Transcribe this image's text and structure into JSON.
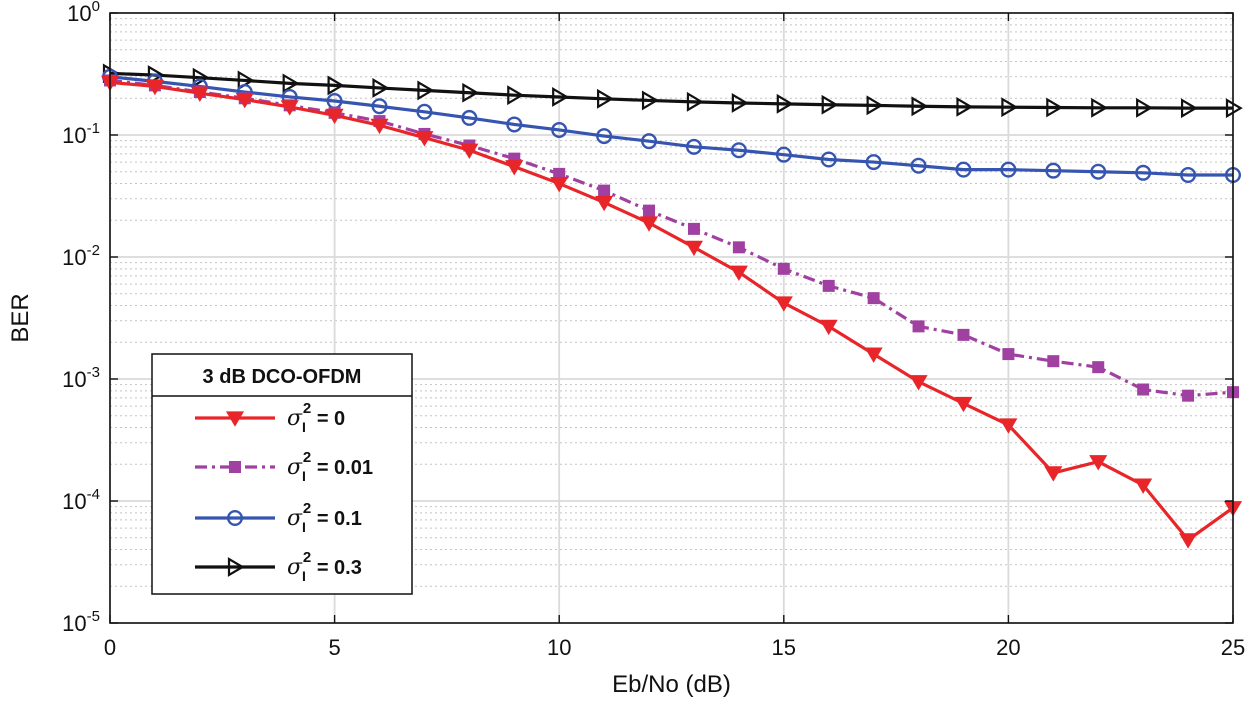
{
  "chart_data": {
    "type": "line",
    "title": "",
    "xlabel": "Eb/No (dB)",
    "ylabel": "BER",
    "x_scale": "linear",
    "y_scale": "log",
    "xlim": [
      0,
      25
    ],
    "ylim": [
      1e-05,
      1
    ],
    "x_ticks": [
      0,
      5,
      10,
      15,
      20,
      25
    ],
    "y_ticks": [
      {
        "exp": 0,
        "base": "10",
        "sup": "0"
      },
      {
        "exp": -1,
        "base": "10",
        "sup": "-1"
      },
      {
        "exp": -2,
        "base": "10",
        "sup": "-2"
      },
      {
        "exp": -3,
        "base": "10",
        "sup": "-3"
      },
      {
        "exp": -4,
        "base": "10",
        "sup": "-4"
      },
      {
        "exp": -5,
        "base": "10",
        "sup": "-5"
      }
    ],
    "grid": true,
    "minor_grid": true,
    "legend": {
      "title": "3 dB DCO-OFDM",
      "placement": "bottom-left"
    },
    "x": [
      0,
      1,
      2,
      3,
      4,
      5,
      6,
      7,
      8,
      9,
      10,
      11,
      12,
      13,
      14,
      15,
      16,
      17,
      18,
      19,
      20,
      21,
      22,
      23,
      24,
      25
    ],
    "series": [
      {
        "label": {
          "sigma": "σ",
          "sub": "I",
          "sup": "2",
          "rest": " = 0"
        },
        "color": "#e8262a",
        "marker": "triangle-down",
        "dash": "solid",
        "values": [
          0.27,
          0.25,
          0.22,
          0.195,
          0.17,
          0.145,
          0.12,
          0.095,
          0.075,
          0.055,
          0.04,
          0.028,
          0.019,
          0.012,
          0.0075,
          0.0042,
          0.0027,
          0.0016,
          0.00095,
          0.00063,
          0.00042,
          0.00017,
          0.00021,
          0.000135,
          4.8e-05,
          8.8e-05
        ]
      },
      {
        "label": {
          "sigma": "σ",
          "sub": "I",
          "sup": "2",
          "rest": " = 0.01"
        },
        "color": "#a040a0",
        "marker": "square",
        "dash": "dashdot",
        "values": [
          0.28,
          0.255,
          0.225,
          0.2,
          0.175,
          0.152,
          0.13,
          0.102,
          0.082,
          0.064,
          0.048,
          0.035,
          0.024,
          0.017,
          0.012,
          0.008,
          0.0058,
          0.0046,
          0.0027,
          0.0023,
          0.0016,
          0.0014,
          0.00125,
          0.00082,
          0.00073,
          0.00078
        ]
      },
      {
        "label": {
          "sigma": "σ",
          "sub": "I",
          "sup": "2",
          "rest": " = 0.1"
        },
        "color": "#3555b0",
        "marker": "circle",
        "dash": "solid",
        "values": [
          0.3,
          0.275,
          0.25,
          0.225,
          0.205,
          0.19,
          0.172,
          0.155,
          0.138,
          0.122,
          0.11,
          0.098,
          0.089,
          0.08,
          0.075,
          0.069,
          0.063,
          0.06,
          0.056,
          0.052,
          0.052,
          0.051,
          0.05,
          0.049,
          0.047,
          0.047
        ]
      },
      {
        "label": {
          "sigma": "σ",
          "sub": "I",
          "sup": "2",
          "rest": " = 0.3"
        },
        "color": "#111111",
        "marker": "triangle-right",
        "dash": "solid",
        "values": [
          0.32,
          0.31,
          0.295,
          0.28,
          0.265,
          0.255,
          0.243,
          0.232,
          0.222,
          0.212,
          0.205,
          0.198,
          0.192,
          0.187,
          0.183,
          0.18,
          0.177,
          0.175,
          0.172,
          0.17,
          0.169,
          0.168,
          0.167,
          0.167,
          0.166,
          0.166
        ]
      }
    ]
  }
}
